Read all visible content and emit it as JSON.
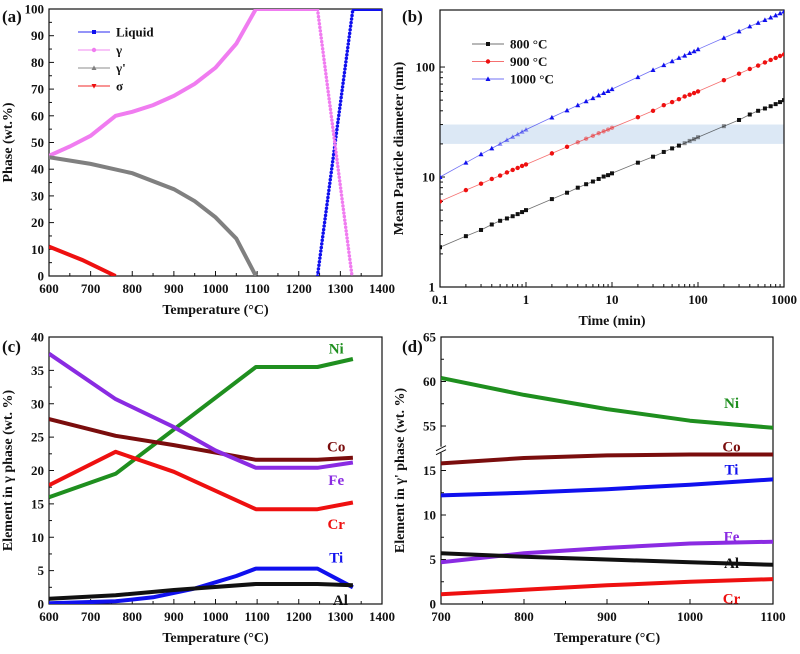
{
  "chart_data": [
    {
      "panel_label": "(a)",
      "type": "line",
      "xlabel": "Temperature (°C)",
      "ylabel": "Phase (wt.%)",
      "xlim": [
        600,
        1400
      ],
      "ylim": [
        0,
        100
      ],
      "xticks": [
        "600",
        "700",
        "800",
        "900",
        "1000",
        "1100",
        "1200",
        "1300",
        "1400"
      ],
      "yticks": [
        "0",
        "10",
        "20",
        "30",
        "40",
        "50",
        "60",
        "70",
        "80",
        "90",
        "100"
      ],
      "grid": false,
      "legend": "top-left",
      "series": [
        {
          "name": "Liquid",
          "color": "#1010ee",
          "marker": "square",
          "points": [
            [
              1245,
              0
            ],
            [
              1330,
              100
            ],
            [
              1400,
              100
            ]
          ]
        },
        {
          "name": "γ",
          "color": "#f07cf0",
          "marker": "circle",
          "points": [
            [
              600,
              45
            ],
            [
              650,
              48.5
            ],
            [
              700,
              52.5
            ],
            [
              760,
              60
            ],
            [
              800,
              61.5
            ],
            [
              850,
              64
            ],
            [
              900,
              67.5
            ],
            [
              950,
              72
            ],
            [
              1000,
              78
            ],
            [
              1050,
              87
            ],
            [
              1097,
              100
            ],
            [
              1245,
              100
            ],
            [
              1328,
              0
            ]
          ]
        },
        {
          "name": "γ'",
          "color": "#808080",
          "marker": "triangle",
          "points": [
            [
              600,
              44.5
            ],
            [
              700,
              42
            ],
            [
              800,
              38.5
            ],
            [
              900,
              32.5
            ],
            [
              950,
              28
            ],
            [
              1000,
              22
            ],
            [
              1050,
              14
            ],
            [
              1097,
              0
            ]
          ]
        },
        {
          "name": "σ",
          "color": "#ee1010",
          "marker": "triangle-down",
          "points": [
            [
              600,
              11
            ],
            [
              680,
              6
            ],
            [
              760,
              0
            ]
          ]
        }
      ]
    },
    {
      "panel_label": "(b)",
      "type": "line",
      "xlabel": "Time (min)",
      "ylabel": "Mean Particle diameter (nm)",
      "xscale": "log",
      "yscale": "log",
      "xlim": [
        0.1,
        1000
      ],
      "ylim": [
        1,
        330
      ],
      "xticks": [
        "0.1",
        "1",
        "10",
        "100",
        "1000"
      ],
      "yticks": [
        "1",
        "10",
        "100"
      ],
      "grid": false,
      "legend": "top-left",
      "shaded_band": {
        "y": [
          20,
          30
        ],
        "color": "#dce8f5"
      },
      "x": [
        0.1,
        0.2,
        0.3,
        0.4,
        0.5,
        0.6,
        0.7,
        0.8,
        0.9,
        1,
        2,
        3,
        4,
        5,
        6,
        7,
        8,
        9,
        10,
        20,
        30,
        40,
        50,
        60,
        70,
        80,
        90,
        100,
        200,
        300,
        400,
        500,
        600,
        700,
        800,
        900,
        1000
      ],
      "series": [
        {
          "name": "800 °C",
          "color": "#111111",
          "marker": "square",
          "values": [
            2.3,
            2.9,
            3.3,
            3.7,
            4.0,
            4.2,
            4.4,
            4.6,
            4.8,
            5.0,
            6.3,
            7.2,
            8.0,
            8.6,
            9.1,
            9.6,
            10.1,
            10.4,
            10.8,
            13.5,
            15.3,
            16.9,
            18.2,
            19.3,
            20.3,
            21.3,
            22.1,
            23,
            29,
            33,
            37,
            40,
            42,
            44,
            46,
            48,
            50
          ]
        },
        {
          "name": "900 °C",
          "color": "#ee1010",
          "marker": "circle",
          "values": [
            6.0,
            7.6,
            8.7,
            9.6,
            10.3,
            11.0,
            11.6,
            12.1,
            12.6,
            13,
            16.4,
            18.8,
            20.7,
            22.3,
            23.7,
            25,
            26,
            27,
            28,
            35,
            40,
            45,
            48,
            51,
            54,
            56,
            58,
            60,
            76,
            87,
            96,
            103,
            110,
            116,
            121,
            126,
            130
          ]
        },
        {
          "name": "1000 °C",
          "color": "#1010ee",
          "marker": "triangle",
          "values": [
            10,
            13.5,
            16.1,
            18.2,
            20.0,
            21.7,
            23.2,
            24.5,
            25.8,
            27,
            34.8,
            40.4,
            44.9,
            48.8,
            52.1,
            55.2,
            58,
            60.5,
            63,
            81,
            94,
            104,
            113,
            121,
            127,
            134,
            139,
            145,
            184,
            211,
            234,
            252,
            268,
            282,
            295,
            308,
            320
          ]
        }
      ]
    },
    {
      "panel_label": "(c)",
      "type": "line",
      "xlabel": "Temperature (°C)",
      "ylabel": "Element in γ phase (wt. %)",
      "xlim": [
        600,
        1400
      ],
      "ylim": [
        0,
        40
      ],
      "xticks": [
        "600",
        "700",
        "800",
        "900",
        "1000",
        "1100",
        "1200",
        "1300",
        "1400"
      ],
      "yticks": [
        "0",
        "5",
        "10",
        "15",
        "20",
        "25",
        "30",
        "35",
        "40"
      ],
      "grid": false,
      "legend": "inline",
      "series": [
        {
          "name": "Ni",
          "color": "#1f8f1f",
          "points": [
            [
              600,
              16
            ],
            [
              760,
              19.5
            ],
            [
              1097,
              35.5
            ],
            [
              1245,
              35.5
            ],
            [
              1330,
              36.7
            ]
          ]
        },
        {
          "name": "Co",
          "color": "#7a0d0d",
          "points": [
            [
              600,
              27.7
            ],
            [
              760,
              25.2
            ],
            [
              900,
              23.8
            ],
            [
              1097,
              21.6
            ],
            [
              1245,
              21.6
            ],
            [
              1330,
              21.9
            ]
          ]
        },
        {
          "name": "Fe",
          "color": "#8a2be2",
          "points": [
            [
              600,
              37.5
            ],
            [
              760,
              30.7
            ],
            [
              900,
              26.5
            ],
            [
              1000,
              23
            ],
            [
              1097,
              20.4
            ],
            [
              1245,
              20.4
            ],
            [
              1330,
              21.2
            ]
          ]
        },
        {
          "name": "Cr",
          "color": "#ee1010",
          "points": [
            [
              600,
              17.8
            ],
            [
              760,
              22.8
            ],
            [
              900,
              19.8
            ],
            [
              1097,
              14.2
            ],
            [
              1245,
              14.2
            ],
            [
              1330,
              15.2
            ]
          ]
        },
        {
          "name": "Ti",
          "color": "#1010ee",
          "points": [
            [
              600,
              0.1
            ],
            [
              760,
              0.4
            ],
            [
              850,
              1.0
            ],
            [
              950,
              2.3
            ],
            [
              1050,
              4.2
            ],
            [
              1097,
              5.3
            ],
            [
              1245,
              5.3
            ],
            [
              1330,
              2.5
            ]
          ]
        },
        {
          "name": "Al",
          "color": "#111111",
          "points": [
            [
              600,
              0.8
            ],
            [
              760,
              1.3
            ],
            [
              900,
              2.1
            ],
            [
              1097,
              3.0
            ],
            [
              1245,
              3.0
            ],
            [
              1330,
              2.8
            ]
          ]
        }
      ]
    },
    {
      "panel_label": "(d)",
      "type": "line",
      "xlabel": "Temperature (°C)",
      "ylabel": "Element in γ' phase (wt. %)",
      "xlim": [
        700,
        1100
      ],
      "ylim": [
        0,
        65
      ],
      "ybreak": [
        17,
        52
      ],
      "xticks": [
        "700",
        "800",
        "900",
        "1000",
        "1100"
      ],
      "yticks": [
        "0",
        "5",
        "10",
        "15",
        "55",
        "60",
        "65"
      ],
      "grid": false,
      "legend": "inline",
      "series": [
        {
          "name": "Ni",
          "color": "#1f8f1f",
          "points": [
            [
              700,
              60.4
            ],
            [
              800,
              58.5
            ],
            [
              900,
              56.9
            ],
            [
              1000,
              55.6
            ],
            [
              1100,
              54.8
            ]
          ]
        },
        {
          "name": "Co",
          "color": "#7a0d0d",
          "points": [
            [
              700,
              15.8
            ],
            [
              800,
              16.4
            ],
            [
              900,
              16.7
            ],
            [
              1000,
              16.8
            ],
            [
              1100,
              16.8
            ]
          ]
        },
        {
          "name": "Ti",
          "color": "#1010ee",
          "points": [
            [
              700,
              12.2
            ],
            [
              800,
              12.5
            ],
            [
              900,
              12.9
            ],
            [
              1000,
              13.4
            ],
            [
              1100,
              14.0
            ]
          ]
        },
        {
          "name": "Fe",
          "color": "#8a2be2",
          "points": [
            [
              700,
              4.7
            ],
            [
              800,
              5.7
            ],
            [
              900,
              6.3
            ],
            [
              1000,
              6.8
            ],
            [
              1100,
              7.0
            ]
          ]
        },
        {
          "name": "Al",
          "color": "#111111",
          "points": [
            [
              700,
              5.7
            ],
            [
              800,
              5.3
            ],
            [
              900,
              5.0
            ],
            [
              1000,
              4.7
            ],
            [
              1100,
              4.4
            ]
          ]
        },
        {
          "name": "Cr",
          "color": "#ee1010",
          "points": [
            [
              700,
              1.1
            ],
            [
              800,
              1.6
            ],
            [
              900,
              2.1
            ],
            [
              1000,
              2.5
            ],
            [
              1100,
              2.8
            ]
          ]
        }
      ]
    }
  ]
}
